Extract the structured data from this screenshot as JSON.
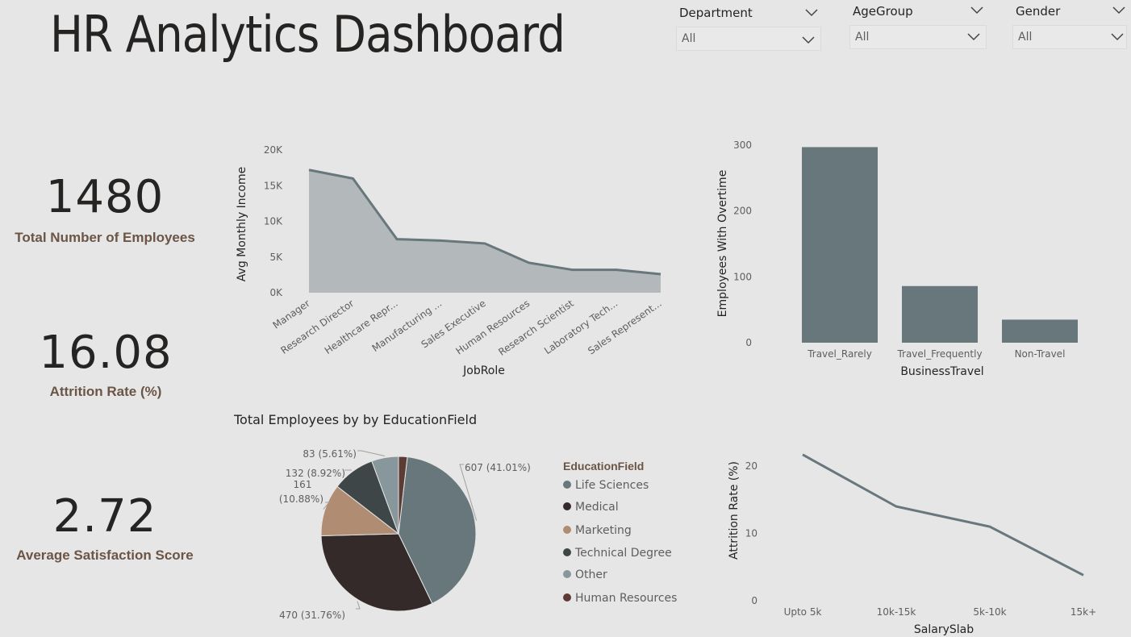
{
  "title": "HR Analytics Dashboard",
  "filters": [
    {
      "label": "Department",
      "value": "All"
    },
    {
      "label": "AgeGroup",
      "value": "All"
    },
    {
      "label": "Gender",
      "value": "All"
    }
  ],
  "kpis": {
    "employees": {
      "value": "1480",
      "label": "Total Number of Employees"
    },
    "attrition": {
      "value": "16.08",
      "label": "Attrition Rate (%)"
    },
    "satisfaction": {
      "value": "2.72",
      "label": "Average Satisfaction Score"
    }
  },
  "colors": {
    "primary": "#68777b",
    "area_fill": "#b3b9bb",
    "medical": "#352a2a",
    "marketing": "#b08c73",
    "technical": "#3f4648",
    "other": "#87979b",
    "hr": "#5d3b35",
    "kpi_label": "#6b5546"
  },
  "chart_data": [
    {
      "type": "area",
      "title": "",
      "xlabel": "JobRole",
      "ylabel": "Avg Monthly Income",
      "categories": [
        "Manager",
        "Research Director",
        "Healthcare Repr...",
        "Manufacturing ...",
        "Sales Executive",
        "Human Resources",
        "Research Scientist",
        "Laboratory Tech...",
        "Sales Represent..."
      ],
      "values": [
        17200,
        16000,
        7500,
        7300,
        6900,
        4200,
        3200,
        3200,
        2600
      ],
      "ylim": [
        0,
        20000
      ],
      "yticks": [
        "0K",
        "5K",
        "10K",
        "15K",
        "20K"
      ],
      "grid": false
    },
    {
      "type": "bar",
      "title": "",
      "xlabel": "BusinessTravel",
      "ylabel": "Employees With Overtime",
      "categories": [
        "Travel_Rarely",
        "Travel_Frequently",
        "Non-Travel"
      ],
      "values": [
        297,
        86,
        35
      ],
      "ylim": [
        0,
        300
      ],
      "yticks": [
        "0",
        "100",
        "200",
        "300"
      ],
      "grid": false
    },
    {
      "type": "pie",
      "title": "Total Employees by by EducationField",
      "legend_title": "EducationField",
      "legend_position": "right",
      "slices": [
        {
          "name": "Life Sciences",
          "value": 607,
          "label": "607 (41.01%)",
          "color": "#68777b"
        },
        {
          "name": "Medical",
          "value": 470,
          "label": "470 (31.76%)",
          "color": "#352a2a"
        },
        {
          "name": "Marketing",
          "value": 161,
          "label_line1": "161",
          "label_line2": "(10.88%)",
          "color": "#b08c73"
        },
        {
          "name": "Technical Degree",
          "value": 132,
          "label": "132 (8.92%)",
          "color": "#3f4648"
        },
        {
          "name": "Other",
          "value": 83,
          "label": "83 (5.61%)",
          "color": "#87979b"
        },
        {
          "name": "Human Resources",
          "value": 27,
          "color": "#5d3b35"
        }
      ]
    },
    {
      "type": "line",
      "title": "",
      "xlabel": "SalarySlab",
      "ylabel": "Attrition Rate (%)",
      "categories": [
        "Upto 5k",
        "10k-15k",
        "5k-10k",
        "15k+"
      ],
      "values": [
        21.7,
        14.0,
        11.0,
        3.8
      ],
      "ylim": [
        0,
        23
      ],
      "yticks": [
        "0",
        "10",
        "20"
      ],
      "grid": false
    }
  ]
}
